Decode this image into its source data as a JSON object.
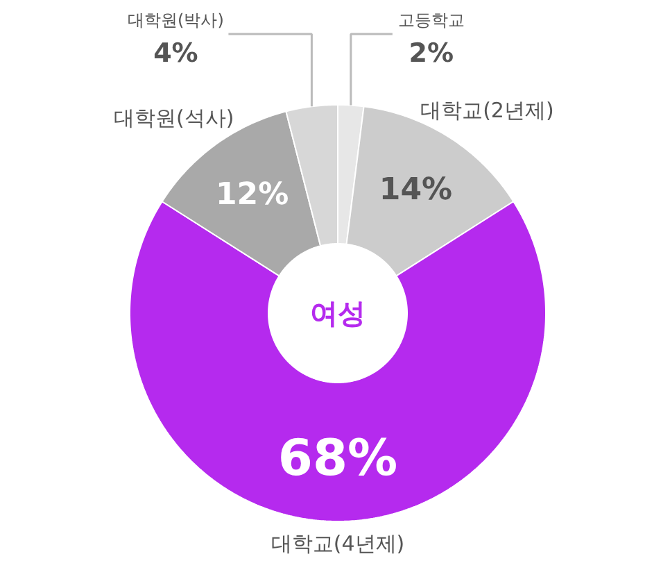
{
  "chart_data": {
    "type": "donut",
    "categories": [
      "고등학교",
      "대학교(2년제)",
      "대학교(4년제)",
      "대학원(석사)",
      "대학원(박사)"
    ],
    "values": [
      2,
      14,
      68,
      12,
      4
    ],
    "colors": [
      "#e7e7e7",
      "#cccccc",
      "#b52aee",
      "#a9a9a9",
      "#d7d7d7"
    ],
    "value_labels": [
      "2%",
      "14%",
      "68%",
      "12%",
      "4%"
    ],
    "annotations": [
      "여성"
    ]
  }
}
